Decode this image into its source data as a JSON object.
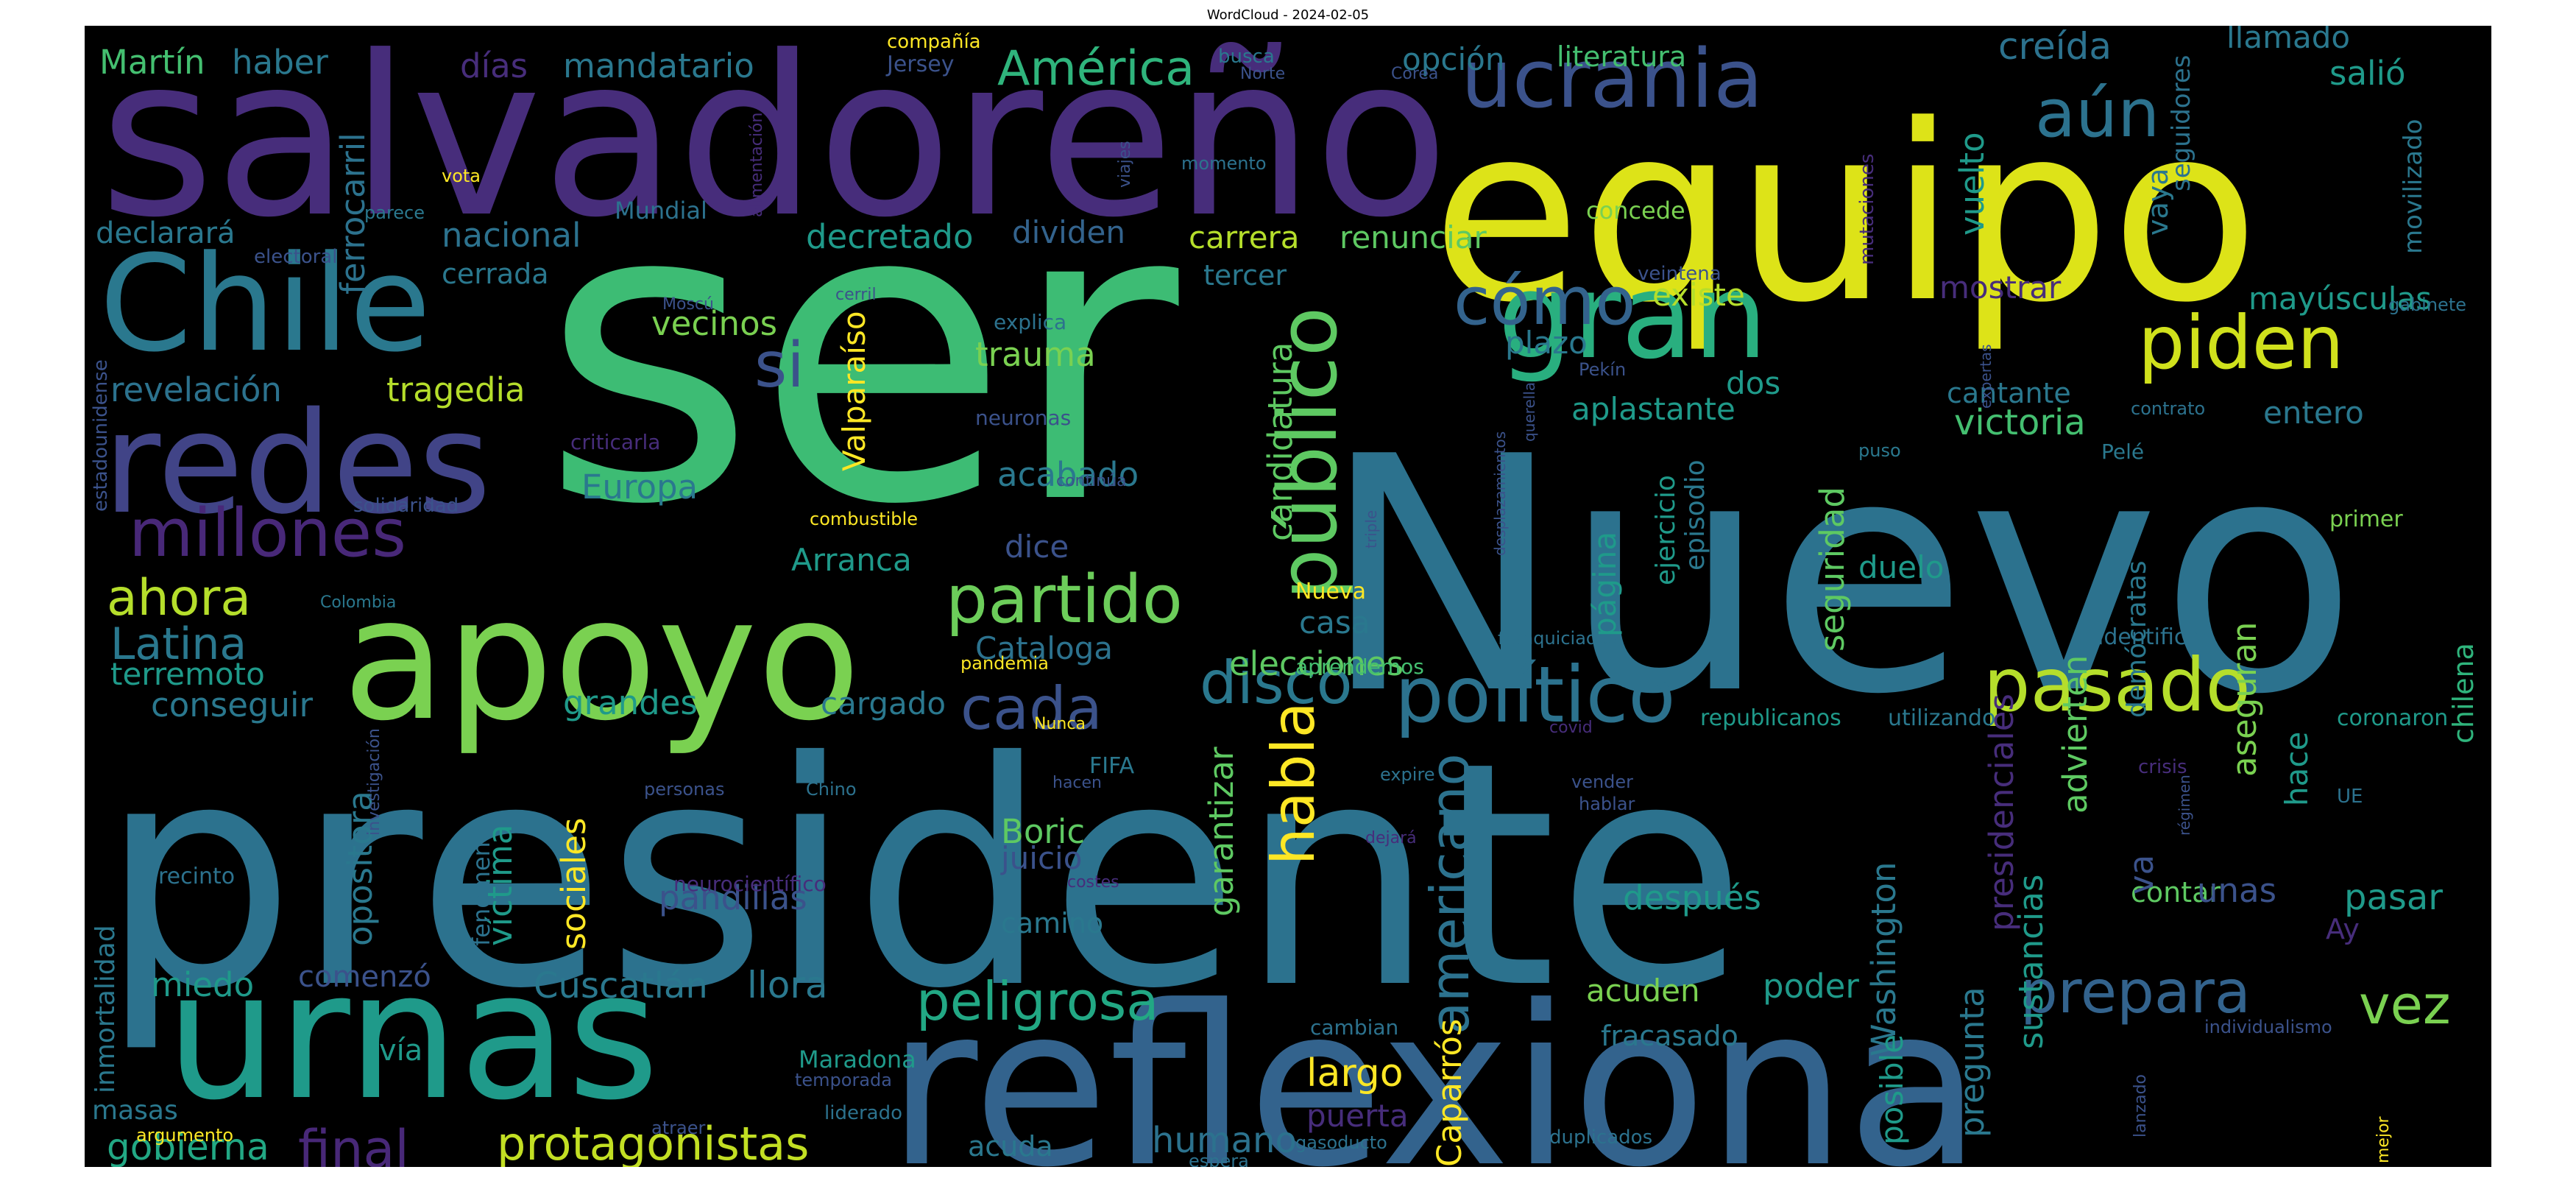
{
  "chart_data": {
    "type": "wordcloud",
    "title": "WordCloud - 2024-02-05",
    "background": "#000000",
    "colormap": "viridis",
    "words": [
      {
        "text": "ser",
        "weight": 1.0,
        "color": "#3dbc74"
      },
      {
        "text": "presidente",
        "weight": 0.97,
        "color": "#2c728e"
      },
      {
        "text": "Nuevo",
        "weight": 0.9,
        "color": "#2c728e"
      },
      {
        "text": "salvadoreño",
        "weight": 0.72,
        "color": "#472d7b"
      },
      {
        "text": "equipo",
        "weight": 0.72,
        "color": "#dde318"
      },
      {
        "text": "reflexiona",
        "weight": 0.72,
        "color": "#33638d"
      },
      {
        "text": "urnas",
        "weight": 0.62,
        "color": "#1f9a8a"
      },
      {
        "text": "apoyo",
        "weight": 0.55,
        "color": "#7ad151"
      },
      {
        "text": "redes",
        "weight": 0.5,
        "color": "#414487"
      },
      {
        "text": "Chile",
        "weight": 0.48,
        "color": "#2a788e"
      },
      {
        "text": "gran",
        "weight": 0.46,
        "color": "#29af7f"
      },
      {
        "text": "ucrania",
        "weight": 0.34,
        "color": "#3b528b"
      },
      {
        "text": "público",
        "weight": 0.33,
        "color": "#5ec962"
      },
      {
        "text": "político",
        "weight": 0.28,
        "color": "#2c728e"
      },
      {
        "text": "pasado",
        "weight": 0.27,
        "color": "#b5de2b"
      },
      {
        "text": "piden",
        "weight": 0.27,
        "color": "#d0e11c"
      },
      {
        "text": "partido",
        "weight": 0.24,
        "color": "#6ccd5a"
      },
      {
        "text": "cómo",
        "weight": 0.24,
        "color": "#33638d"
      },
      {
        "text": "aún",
        "weight": 0.24,
        "color": "#2c728e"
      },
      {
        "text": "millones",
        "weight": 0.24,
        "color": "#482878"
      },
      {
        "text": "si",
        "weight": 0.22,
        "color": "#3b528b"
      },
      {
        "text": "disco",
        "weight": 0.22,
        "color": "#2a788e"
      },
      {
        "text": "cada",
        "weight": 0.22,
        "color": "#3b528b"
      },
      {
        "text": "habla",
        "weight": 0.22,
        "color": "#fde725"
      },
      {
        "text": "americano",
        "weight": 0.2,
        "color": "#2c728e"
      },
      {
        "text": "final",
        "weight": 0.2,
        "color": "#482878"
      },
      {
        "text": "protagonistas",
        "weight": 0.2,
        "color": "#c2df23"
      },
      {
        "text": "peligrosa",
        "weight": 0.2,
        "color": "#22a884"
      },
      {
        "text": "prepara",
        "weight": 0.2,
        "color": "#33638d"
      },
      {
        "text": "ahora",
        "weight": 0.2,
        "color": "#b5de2b"
      },
      {
        "text": "vez",
        "weight": 0.2,
        "color": "#7ad151"
      },
      {
        "text": "América",
        "weight": 0.18,
        "color": "#2fb47c"
      },
      {
        "text": "humano",
        "weight": 0.16,
        "color": "#2c728e"
      },
      {
        "text": "Latina",
        "weight": 0.16,
        "color": "#2a788e"
      },
      {
        "text": "gobierna",
        "weight": 0.14,
        "color": "#22a884"
      },
      {
        "text": "Caparrós",
        "weight": 0.14,
        "color": "#fde725"
      },
      {
        "text": "largo",
        "weight": 0.14,
        "color": "#fde725"
      },
      {
        "text": "ferrocarril",
        "weight": 0.14,
        "color": "#2c728e"
      },
      {
        "text": "candidatura",
        "weight": 0.14,
        "color": "#5ec962"
      },
      {
        "text": "sociales",
        "weight": 0.14,
        "color": "#fde725"
      },
      {
        "text": "garantizar",
        "weight": 0.14,
        "color": "#5ec962"
      },
      {
        "text": "seguridad",
        "weight": 0.14,
        "color": "#5ec962"
      },
      {
        "text": "pregunta",
        "weight": 0.14,
        "color": "#2a788e"
      },
      {
        "text": "Washington",
        "weight": 0.14,
        "color": "#2a788e"
      },
      {
        "text": "presidenciales",
        "weight": 0.14,
        "color": "#472d7b"
      },
      {
        "text": "sustancias",
        "weight": 0.14,
        "color": "#1f9a8a"
      },
      {
        "text": "advierten",
        "weight": 0.14,
        "color": "#5ec962"
      },
      {
        "text": "aseguran",
        "weight": 0.14,
        "color": "#7ad151"
      },
      {
        "text": "Cuscatlán",
        "weight": 0.14,
        "color": "#2a788e"
      },
      {
        "text": "llora",
        "weight": 0.14,
        "color": "#2a788e"
      },
      {
        "text": "opositora",
        "weight": 0.14,
        "color": "#2a788e"
      },
      {
        "text": "víctima",
        "weight": 0.14,
        "color": "#1f9a8a"
      },
      {
        "text": "Valparaíso",
        "weight": 0.12,
        "color": "#fde725"
      },
      {
        "text": "vuelto",
        "weight": 0.12,
        "color": "#1f9a8a"
      },
      {
        "text": "creída",
        "weight": 0.12,
        "color": "#2c728e"
      },
      {
        "text": "llamado",
        "weight": 0.12,
        "color": "#2a788e"
      },
      {
        "text": "salió",
        "weight": 0.12,
        "color": "#1f9a8a"
      },
      {
        "text": "mayúsculas",
        "weight": 0.12,
        "color": "#1f9a8a"
      },
      {
        "text": "victoria",
        "weight": 0.12,
        "color": "#44bf70"
      },
      {
        "text": "entero",
        "weight": 0.12,
        "color": "#2a788e"
      },
      {
        "text": "mostrar",
        "weight": 0.12,
        "color": "#472d7b"
      },
      {
        "text": "existe",
        "weight": 0.12,
        "color": "#b5de2b"
      },
      {
        "text": "plazo",
        "weight": 0.12,
        "color": "#2a788e"
      },
      {
        "text": "dos",
        "weight": 0.12,
        "color": "#1f9a8a"
      },
      {
        "text": "aplastante",
        "weight": 0.12,
        "color": "#1f9a8a"
      },
      {
        "text": "cantante",
        "weight": 0.12,
        "color": "#2a788e"
      },
      {
        "text": "página",
        "weight": 0.12,
        "color": "#1f9a8a"
      },
      {
        "text": "ejercicio",
        "weight": 0.1,
        "color": "#1f9a8a"
      },
      {
        "text": "episodio",
        "weight": 0.1,
        "color": "#2a788e"
      },
      {
        "text": "duelo",
        "weight": 0.12,
        "color": "#1f9a8a"
      },
      {
        "text": "elecciones",
        "weight": 0.12,
        "color": "#5ec962"
      },
      {
        "text": "casa",
        "weight": 0.12,
        "color": "#2a788e"
      },
      {
        "text": "Cataloga",
        "weight": 0.12,
        "color": "#2c728e"
      },
      {
        "text": "cargado",
        "weight": 0.12,
        "color": "#2a788e"
      },
      {
        "text": "grandes",
        "weight": 0.12,
        "color": "#1f9a8a"
      },
      {
        "text": "conseguir",
        "weight": 0.12,
        "color": "#2a788e"
      },
      {
        "text": "terremoto",
        "weight": 0.12,
        "color": "#1f9a8a"
      },
      {
        "text": "Europa",
        "weight": 0.12,
        "color": "#2a788e"
      },
      {
        "text": "Arranca",
        "weight": 0.12,
        "color": "#1f9a8a"
      },
      {
        "text": "dice",
        "weight": 0.12,
        "color": "#3b528b"
      },
      {
        "text": "acabado",
        "weight": 0.12,
        "color": "#2a788e"
      },
      {
        "text": "trauma",
        "weight": 0.12,
        "color": "#7ad151"
      },
      {
        "text": "vecinos",
        "weight": 0.12,
        "color": "#7ad151"
      },
      {
        "text": "decretado",
        "weight": 0.12,
        "color": "#1f9a8a"
      },
      {
        "text": "dividen",
        "weight": 0.12,
        "color": "#33638d"
      },
      {
        "text": "carrera",
        "weight": 0.12,
        "color": "#b5de2b"
      },
      {
        "text": "renunciar",
        "weight": 0.12,
        "color": "#5ec962"
      },
      {
        "text": "tercer",
        "weight": 0.1,
        "color": "#2a788e"
      },
      {
        "text": "opción",
        "weight": 0.12,
        "color": "#2a788e"
      },
      {
        "text": "literatura",
        "weight": 0.1,
        "color": "#44bf70"
      },
      {
        "text": "nacional",
        "weight": 0.12,
        "color": "#2c728e"
      },
      {
        "text": "cerrada",
        "weight": 0.1,
        "color": "#2a788e"
      },
      {
        "text": "declarará",
        "weight": 0.1,
        "color": "#2a788e"
      },
      {
        "text": "revelación",
        "weight": 0.12,
        "color": "#2c728e"
      },
      {
        "text": "tragedia",
        "weight": 0.12,
        "color": "#b5de2b"
      },
      {
        "text": "Martín",
        "weight": 0.12,
        "color": "#44bf70"
      },
      {
        "text": "haber",
        "weight": 0.12,
        "color": "#2a788e"
      },
      {
        "text": "días",
        "weight": 0.12,
        "color": "#472d7b"
      },
      {
        "text": "mandatario",
        "weight": 0.12,
        "color": "#2a788e"
      },
      {
        "text": "Boric",
        "weight": 0.12,
        "color": "#5ec962"
      },
      {
        "text": "juicio",
        "weight": 0.12,
        "color": "#3b528b"
      },
      {
        "text": "pandillas",
        "weight": 0.12,
        "color": "#3b528b"
      },
      {
        "text": "camino",
        "weight": 0.1,
        "color": "#2a788e"
      },
      {
        "text": "comenzó",
        "weight": 0.1,
        "color": "#3b528b"
      },
      {
        "text": "miedo",
        "weight": 0.12,
        "color": "#1f9a8a"
      },
      {
        "text": "vía",
        "weight": 0.1,
        "color": "#1f9a8a"
      },
      {
        "text": "después",
        "weight": 0.12,
        "color": "#1f9a8a"
      },
      {
        "text": "acuden",
        "weight": 0.12,
        "color": "#7ad151"
      },
      {
        "text": "poder",
        "weight": 0.12,
        "color": "#1f9a8a"
      },
      {
        "text": "fracasado",
        "weight": 0.1,
        "color": "#2a788e"
      },
      {
        "text": "pasar",
        "weight": 0.12,
        "color": "#1f9a8a"
      },
      {
        "text": "contar",
        "weight": 0.1,
        "color": "#5ec962"
      },
      {
        "text": "unas",
        "weight": 0.12,
        "color": "#3b528b"
      },
      {
        "text": "Ay",
        "weight": 0.1,
        "color": "#472d7b"
      },
      {
        "text": "va",
        "weight": 0.12,
        "color": "#3b528b"
      },
      {
        "text": "hace",
        "weight": 0.12,
        "color": "#1f9a8a"
      },
      {
        "text": "vaya",
        "weight": 0.1,
        "color": "#2a788e"
      },
      {
        "text": "seguidores",
        "weight": 0.08,
        "color": "#2c728e"
      },
      {
        "text": "movilizado",
        "weight": 0.08,
        "color": "#2a788e"
      },
      {
        "text": "chilena",
        "weight": 0.1,
        "color": "#2fb47c"
      },
      {
        "text": "demócratas",
        "weight": 0.1,
        "color": "#2a788e"
      },
      {
        "text": "coronaron",
        "weight": 0.08,
        "color": "#1f9a8a"
      },
      {
        "text": "republicanos",
        "weight": 0.08,
        "color": "#1f9a8a"
      },
      {
        "text": "utilizando",
        "weight": 0.08,
        "color": "#2a788e"
      },
      {
        "text": "identificar",
        "weight": 0.08,
        "color": "#2c728e"
      },
      {
        "text": "aprendemos",
        "weight": 0.08,
        "color": "#44bf70"
      },
      {
        "text": "posible",
        "weight": 0.1,
        "color": "#1f9a8a"
      },
      {
        "text": "puerta",
        "weight": 0.1,
        "color": "#472d7b"
      },
      {
        "text": "acuda",
        "weight": 0.1,
        "color": "#2a788e"
      },
      {
        "text": "masas",
        "weight": 0.1,
        "color": "#2a788e"
      },
      {
        "text": "inmortalidad",
        "weight": 0.1,
        "color": "#2a788e"
      },
      {
        "text": "fenómeno",
        "weight": 0.08,
        "color": "#2c728e"
      },
      {
        "text": "recinto",
        "weight": 0.08,
        "color": "#2c728e"
      },
      {
        "text": "Maradona",
        "weight": 0.08,
        "color": "#1f9a8a"
      },
      {
        "text": "Mundial",
        "weight": 0.08,
        "color": "#2c728e"
      },
      {
        "text": "concede",
        "weight": 0.08,
        "color": "#7ad151"
      },
      {
        "text": "compañía",
        "weight": 0.06,
        "color": "#fde725"
      },
      {
        "text": "busca",
        "weight": 0.06,
        "color": "#2a788e"
      },
      {
        "text": "Jersey",
        "weight": 0.06,
        "color": "#3b528b"
      },
      {
        "text": "Norte",
        "weight": 0.05,
        "color": "#3b528b"
      },
      {
        "text": "Corea",
        "weight": 0.05,
        "color": "#3b528b"
      },
      {
        "text": "momento",
        "weight": 0.05,
        "color": "#2c728e"
      },
      {
        "text": "viajes",
        "weight": 0.05,
        "color": "#3b528b"
      },
      {
        "text": "alimentación",
        "weight": 0.05,
        "color": "#472d7b"
      },
      {
        "text": "vota",
        "weight": 0.05,
        "color": "#fde725"
      },
      {
        "text": "parece",
        "weight": 0.05,
        "color": "#2a788e"
      },
      {
        "text": "electoral",
        "weight": 0.05,
        "color": "#3b528b"
      },
      {
        "text": "mutaciones",
        "weight": 0.05,
        "color": "#472d7b"
      },
      {
        "text": "veintena",
        "weight": 0.05,
        "color": "#3b528b"
      },
      {
        "text": "gabinete",
        "weight": 0.05,
        "color": "#2c728e"
      },
      {
        "text": "expertas",
        "weight": 0.04,
        "color": "#3b528b"
      },
      {
        "text": "querella",
        "weight": 0.04,
        "color": "#3b528b"
      },
      {
        "text": "desplazamientos",
        "weight": 0.04,
        "color": "#3b528b"
      },
      {
        "text": "contrato",
        "weight": 0.04,
        "color": "#2c728e"
      },
      {
        "text": "Pekín",
        "weight": 0.04,
        "color": "#3b528b"
      },
      {
        "text": "puso",
        "weight": 0.04,
        "color": "#2a788e"
      },
      {
        "text": "Pelé",
        "weight": 0.05,
        "color": "#2a788e"
      },
      {
        "text": "primer",
        "weight": 0.05,
        "color": "#7ad151"
      },
      {
        "text": "Moscú",
        "weight": 0.04,
        "color": "#3b528b"
      },
      {
        "text": "cerril",
        "weight": 0.04,
        "color": "#3b528b"
      },
      {
        "text": "explica",
        "weight": 0.05,
        "color": "#2c728e"
      },
      {
        "text": "neuronas",
        "weight": 0.05,
        "color": "#3b528b"
      },
      {
        "text": "continúa",
        "weight": 0.04,
        "color": "#3b528b"
      },
      {
        "text": "criticarla",
        "weight": 0.05,
        "color": "#472d7b"
      },
      {
        "text": "combustible",
        "weight": 0.04,
        "color": "#fde725"
      },
      {
        "text": "triple",
        "weight": 0.04,
        "color": "#3b528b"
      },
      {
        "text": "solidaridad",
        "weight": 0.05,
        "color": "#3b528b"
      },
      {
        "text": "estadounidense",
        "weight": 0.05,
        "color": "#3b528b"
      },
      {
        "text": "Colombia",
        "weight": 0.04,
        "color": "#2a788e"
      },
      {
        "text": "Nueva",
        "weight": 0.05,
        "color": "#fde725"
      },
      {
        "text": "pandemia",
        "weight": 0.04,
        "color": "#fde725"
      },
      {
        "text": "franquiciados",
        "weight": 0.04,
        "color": "#2c728e"
      },
      {
        "text": "covid",
        "weight": 0.04,
        "color": "#472d7b"
      },
      {
        "text": "Nunca",
        "weight": 0.04,
        "color": "#fde725"
      },
      {
        "text": "investigación",
        "weight": 0.04,
        "color": "#3b528b"
      },
      {
        "text": "Chino",
        "weight": 0.04,
        "color": "#2c728e"
      },
      {
        "text": "hacen",
        "weight": 0.04,
        "color": "#3b528b"
      },
      {
        "text": "FIFA",
        "weight": 0.05,
        "color": "#2a788e"
      },
      {
        "text": "personas",
        "weight": 0.04,
        "color": "#3b528b"
      },
      {
        "text": "expire",
        "weight": 0.04,
        "color": "#2c728e"
      },
      {
        "text": "dejará",
        "weight": 0.04,
        "color": "#472d7b"
      },
      {
        "text": "costes",
        "weight": 0.04,
        "color": "#472d7b"
      },
      {
        "text": "neurocientífico",
        "weight": 0.05,
        "color": "#472d7b"
      },
      {
        "text": "vender",
        "weight": 0.04,
        "color": "#3b528b"
      },
      {
        "text": "hablar",
        "weight": 0.04,
        "color": "#3b528b"
      },
      {
        "text": "crisis",
        "weight": 0.05,
        "color": "#472d7b"
      },
      {
        "text": "régimen",
        "weight": 0.04,
        "color": "#3b528b"
      },
      {
        "text": "UE",
        "weight": 0.05,
        "color": "#2c728e"
      },
      {
        "text": "cambian",
        "weight": 0.05,
        "color": "#2c728e"
      },
      {
        "text": "temporada",
        "weight": 0.04,
        "color": "#3b528b"
      },
      {
        "text": "liderado",
        "weight": 0.04,
        "color": "#2c728e"
      },
      {
        "text": "atraer",
        "weight": 0.04,
        "color": "#3b528b"
      },
      {
        "text": "argumento",
        "weight": 0.04,
        "color": "#fde725"
      },
      {
        "text": "espera",
        "weight": 0.04,
        "color": "#2c728e"
      },
      {
        "text": "coacciones",
        "weight": 0.04,
        "color": "#3b528b"
      },
      {
        "text": "gasoducto",
        "weight": 0.04,
        "color": "#2c728e"
      },
      {
        "text": "duplicados",
        "weight": 0.05,
        "color": "#2c728e"
      },
      {
        "text": "lanzado",
        "weight": 0.04,
        "color": "#3b528b"
      },
      {
        "text": "individualismo",
        "weight": 0.04,
        "color": "#3b528b"
      },
      {
        "text": "mejor",
        "weight": 0.04,
        "color": "#fde725"
      }
    ]
  }
}
